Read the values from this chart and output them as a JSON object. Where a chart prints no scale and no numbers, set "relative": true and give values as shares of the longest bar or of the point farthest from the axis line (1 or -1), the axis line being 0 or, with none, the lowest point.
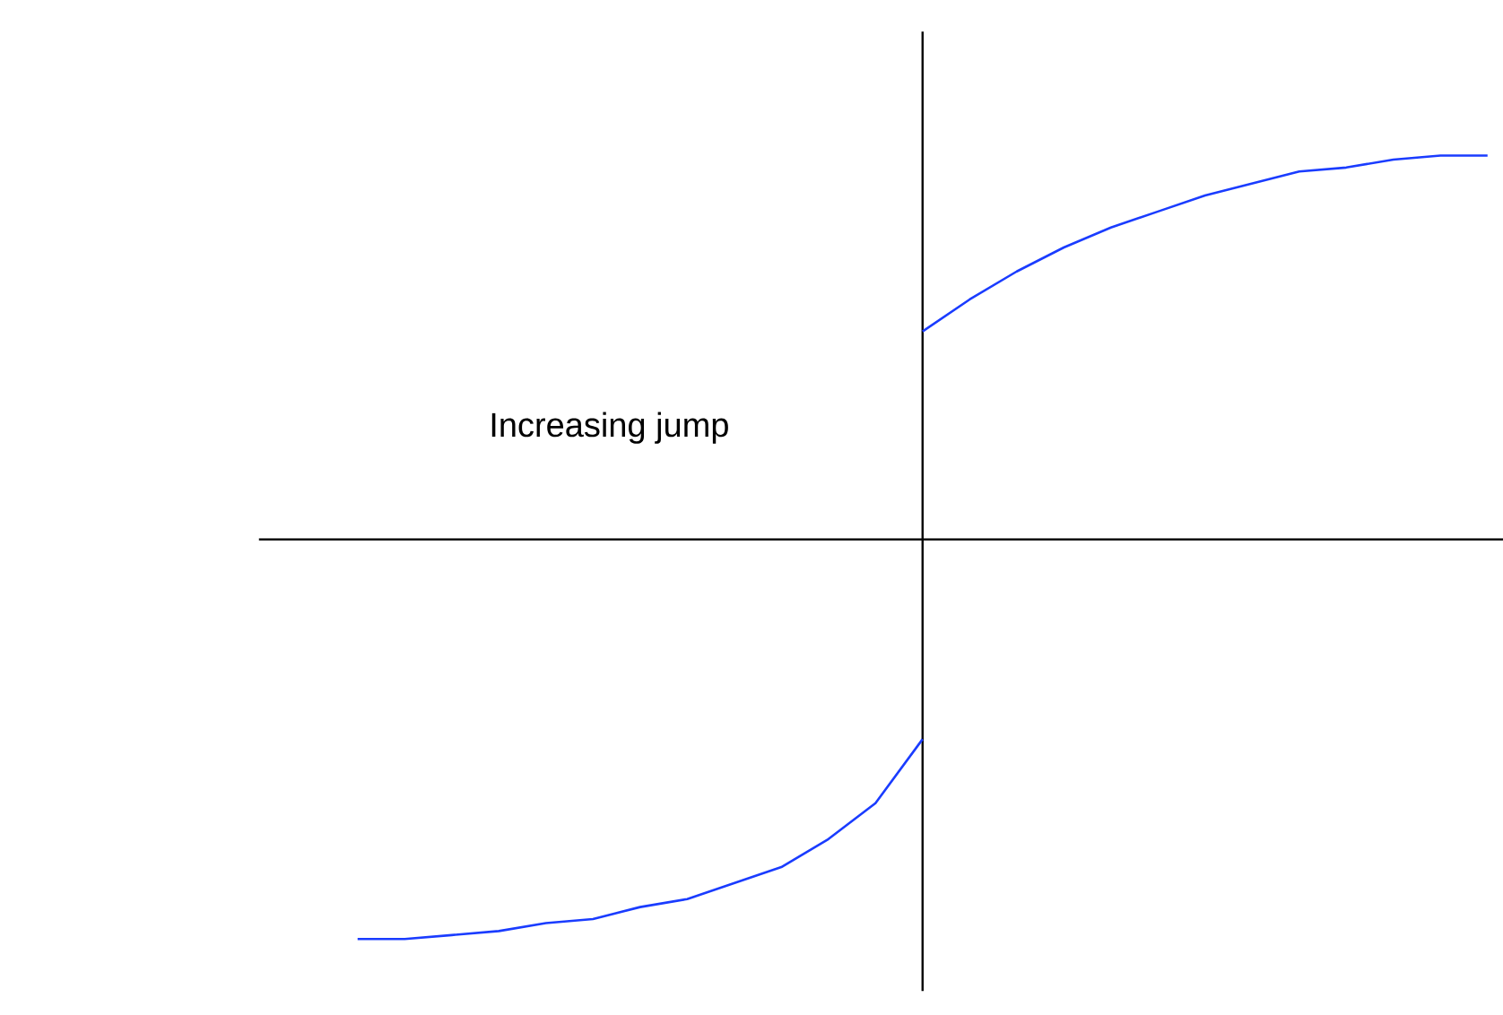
{
  "chart_data": {
    "type": "line",
    "relative": true,
    "annotations": [
      "Increasing jump"
    ],
    "categories": [
      null,
      null,
      null,
      null,
      null,
      null,
      null,
      null,
      null,
      null,
      null,
      null,
      null,
      null,
      null,
      null,
      null,
      null,
      null,
      null,
      null,
      null,
      null,
      null,
      null
    ],
    "series": [
      {
        "color": "#1a3cff",
        "values": [
          -1.0,
          -1.0,
          -0.99,
          -0.98,
          -0.96,
          -0.95,
          -0.92,
          -0.9,
          -0.86,
          -0.82,
          -0.75,
          -0.66,
          -0.5,
          null,
          null,
          null,
          null,
          null,
          null,
          null,
          null,
          null,
          null,
          null,
          null
        ]
      },
      {
        "color": "#1a3cff",
        "values": [
          null,
          null,
          null,
          null,
          null,
          null,
          null,
          null,
          null,
          null,
          null,
          null,
          0.52,
          0.6,
          0.67,
          0.73,
          0.78,
          0.82,
          0.86,
          0.89,
          0.92,
          0.93,
          0.95,
          0.96,
          0.96
        ]
      }
    ],
    "marker": "none",
    "line_style": "solid"
  }
}
